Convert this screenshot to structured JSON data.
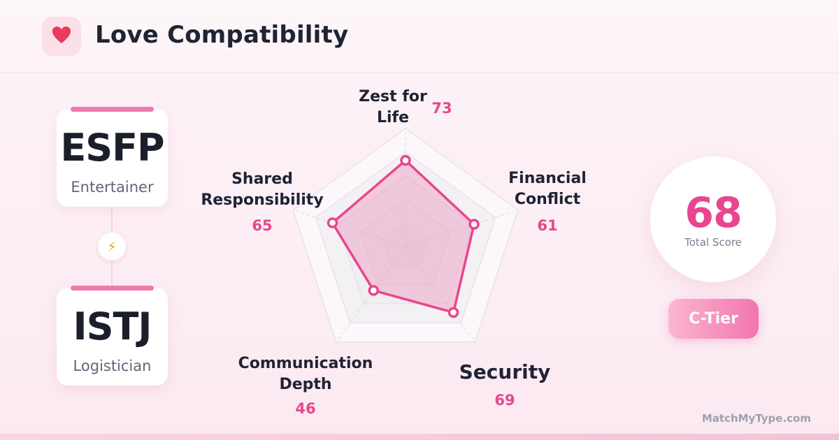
{
  "header": {
    "title": "Love Compatibility",
    "icon": "heart-icon"
  },
  "types": [
    {
      "code": "ESFP",
      "name": "Entertainer"
    },
    {
      "code": "ISTJ",
      "name": "Logistician"
    }
  ],
  "connector_icon": "lightning-bolt-icon",
  "score": {
    "value": "68",
    "label": "Total Score",
    "tier": "C-Tier"
  },
  "brand": "MatchMyType.com",
  "colors": {
    "accent": "#e8468e",
    "accent_light": "#f6c6db",
    "text": "#1f2333"
  },
  "chart_data": {
    "type": "radar",
    "max": 100,
    "axes": [
      {
        "label": [
          "Zest for",
          "Life"
        ],
        "value": 73
      },
      {
        "label": [
          "Financial",
          "Conflict"
        ],
        "value": 61
      },
      {
        "label": [
          "Security"
        ],
        "value": 69
      },
      {
        "label": [
          "Communication",
          "Depth"
        ],
        "value": 46
      },
      {
        "label": [
          "Shared",
          "Responsibility"
        ],
        "value": 65
      }
    ]
  }
}
